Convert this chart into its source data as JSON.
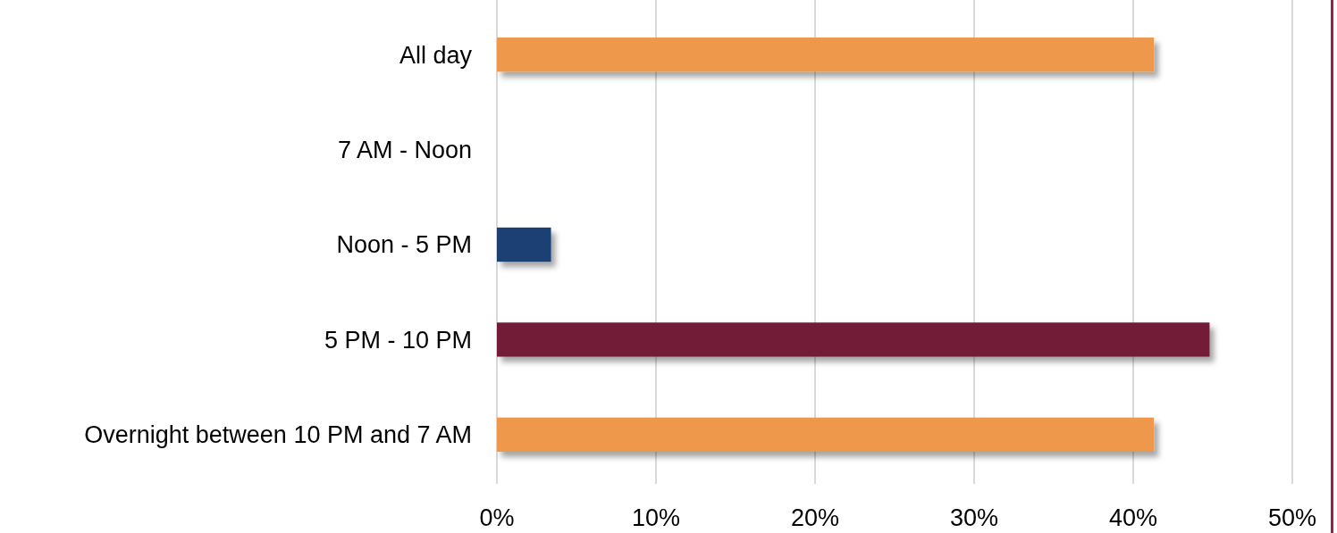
{
  "chart_data": {
    "type": "bar",
    "orientation": "horizontal",
    "categories": [
      "All day",
      "7 AM - Noon",
      "Noon - 5 PM",
      "5 PM - 10 PM",
      "Overnight between 10 PM and 7 AM"
    ],
    "values": [
      41.3,
      0,
      3.4,
      44.8,
      41.3
    ],
    "colors": [
      "#ee984b",
      "#d9d9d9",
      "#1b3f73",
      "#731f37",
      "#ee984b"
    ],
    "xlim": [
      0,
      50
    ],
    "xticks": [
      {
        "value": 0,
        "label": "0%"
      },
      {
        "value": 10,
        "label": "10%"
      },
      {
        "value": 20,
        "label": "20%"
      },
      {
        "value": 30,
        "label": "30%"
      },
      {
        "value": 40,
        "label": "40%"
      },
      {
        "value": 50,
        "label": "50%"
      }
    ],
    "grid": "x"
  }
}
